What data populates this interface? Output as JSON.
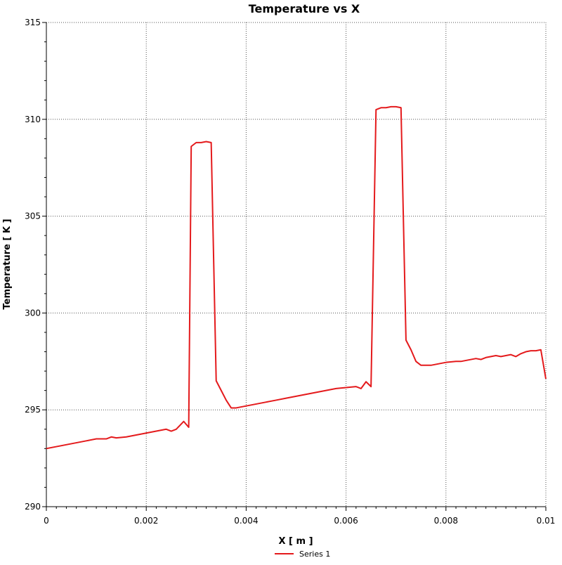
{
  "chart_data": {
    "type": "line",
    "title": "Temperature vs X",
    "xlabel": "X [ m ]",
    "ylabel": "Temperature [ K ]",
    "xlim": [
      0,
      0.01
    ],
    "ylim": [
      290,
      315
    ],
    "xticks": [
      0,
      0.002,
      0.004,
      0.006,
      0.008,
      0.01
    ],
    "xtick_labels": [
      "0",
      "0.002",
      "0.004",
      "0.006",
      "0.008",
      "0.01"
    ],
    "yticks": [
      290,
      295,
      300,
      305,
      310,
      315
    ],
    "ytick_labels": [
      "290",
      "295",
      "300",
      "305",
      "310",
      "315"
    ],
    "grid": true,
    "legend_position": "bottom-center",
    "series": [
      {
        "name": "Series 1",
        "color": "#e41a1c",
        "x": [
          0,
          0.0002,
          0.0004,
          0.0006,
          0.0008,
          0.001,
          0.0012,
          0.0013,
          0.0014,
          0.0016,
          0.0018,
          0.002,
          0.0022,
          0.0024,
          0.0025,
          0.0026,
          0.00275,
          0.00285,
          0.0029,
          0.003,
          0.0031,
          0.0032,
          0.0033,
          0.0034,
          0.0035,
          0.0036,
          0.0037,
          0.0038,
          0.0039,
          0.004,
          0.0042,
          0.0044,
          0.0046,
          0.0048,
          0.005,
          0.0052,
          0.0054,
          0.0056,
          0.0058,
          0.006,
          0.0062,
          0.0063,
          0.0064,
          0.0065,
          0.0066,
          0.0067,
          0.0068,
          0.0069,
          0.007,
          0.0071,
          0.0072,
          0.0073,
          0.0074,
          0.0075,
          0.0076,
          0.0077,
          0.0078,
          0.0079,
          0.008,
          0.0082,
          0.0083,
          0.0084,
          0.0086,
          0.0087,
          0.0088,
          0.009,
          0.0091,
          0.0093,
          0.0094,
          0.0095,
          0.0096,
          0.0097,
          0.0098,
          0.0099,
          0.01
        ],
        "y": [
          293.0,
          293.1,
          293.2,
          293.3,
          293.4,
          293.5,
          293.5,
          293.6,
          293.55,
          293.6,
          293.7,
          293.8,
          293.9,
          294.0,
          293.9,
          294.0,
          294.4,
          294.1,
          308.6,
          308.8,
          308.8,
          308.85,
          308.8,
          296.5,
          296.0,
          295.5,
          295.1,
          295.1,
          295.15,
          295.2,
          295.3,
          295.4,
          295.5,
          295.6,
          295.7,
          295.8,
          295.9,
          296.0,
          296.1,
          296.15,
          296.2,
          296.1,
          296.45,
          296.2,
          310.5,
          310.6,
          310.6,
          310.65,
          310.65,
          310.6,
          298.6,
          298.1,
          297.5,
          297.3,
          297.3,
          297.3,
          297.35,
          297.4,
          297.45,
          297.5,
          297.5,
          297.55,
          297.65,
          297.6,
          297.7,
          297.8,
          297.75,
          297.85,
          297.75,
          297.9,
          298.0,
          298.05,
          298.05,
          298.1,
          296.6
        ]
      }
    ]
  }
}
